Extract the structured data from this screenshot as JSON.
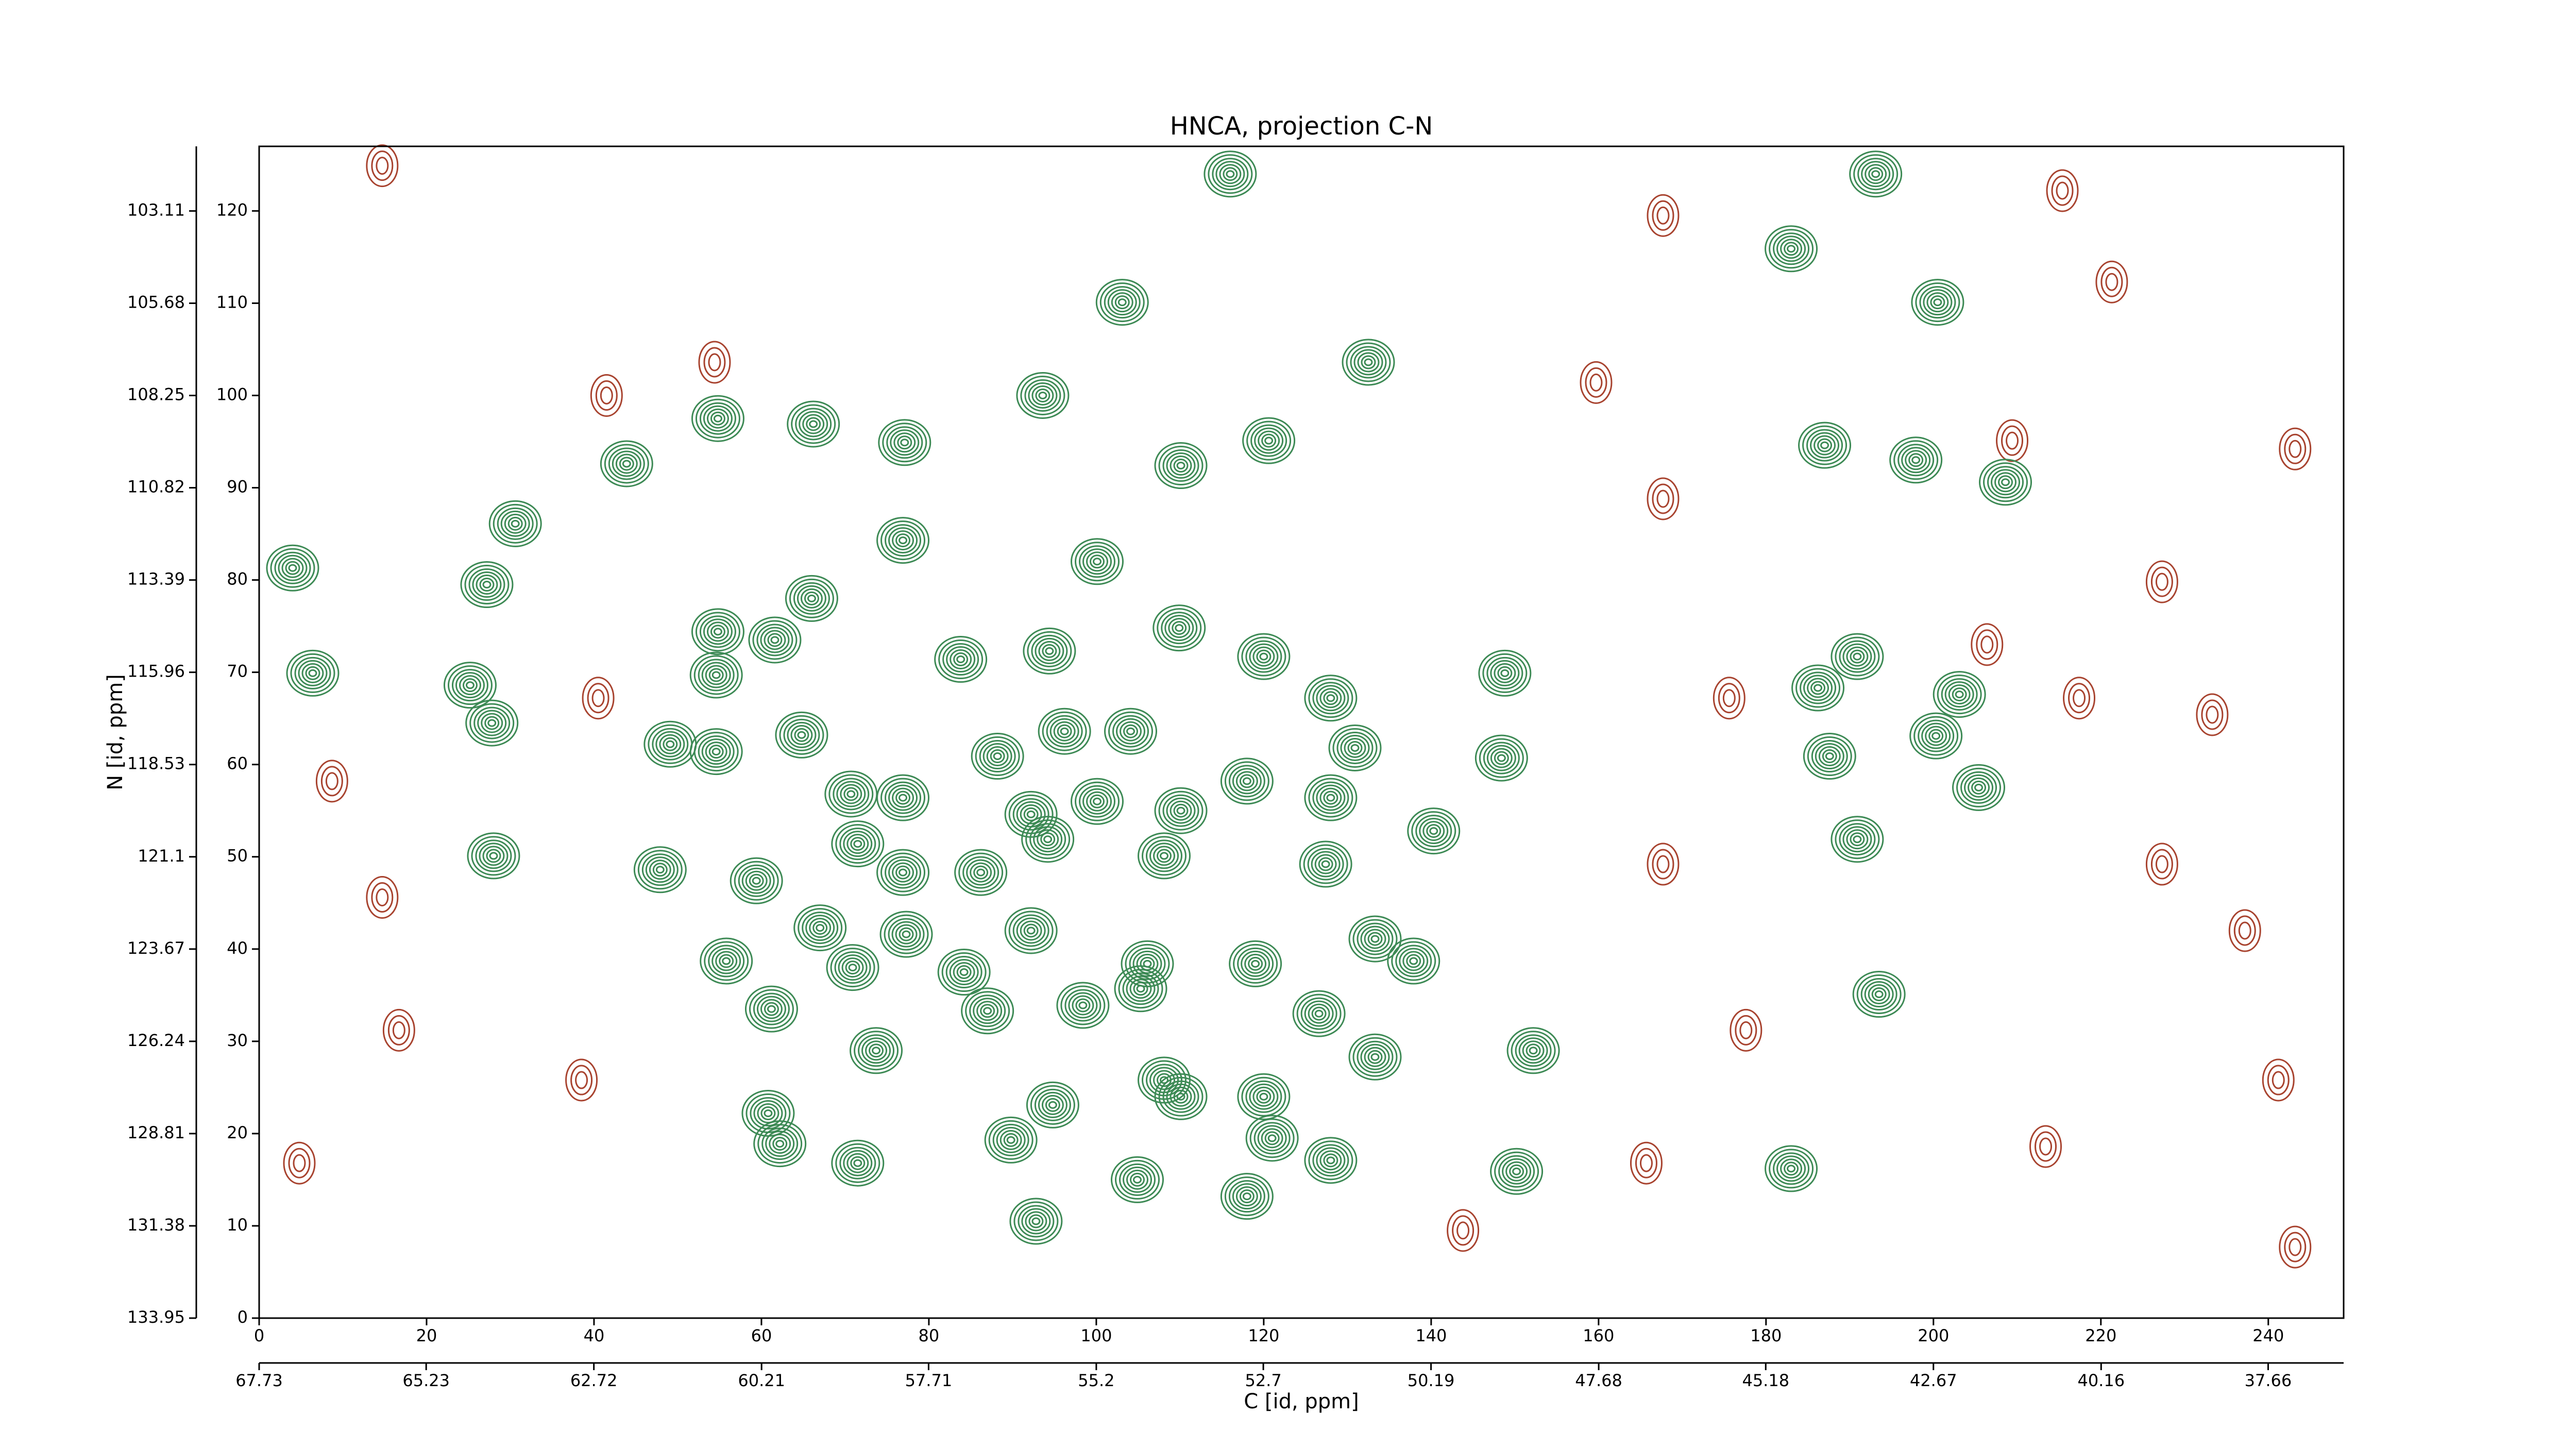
{
  "chart_data": {
    "type": "contour",
    "title": "HNCA, projection C-N",
    "x_label": "C [id, ppm]",
    "y_label": "N [id, ppm]",
    "xlim": [
      0,
      249
    ],
    "xticks": [
      0,
      20,
      40,
      60,
      80,
      100,
      120,
      140,
      160,
      180,
      200,
      220,
      240
    ],
    "ylim": [
      0,
      127
    ],
    "yticks": [
      0,
      10,
      20,
      30,
      40,
      50,
      60,
      70,
      80,
      90,
      100,
      110,
      120
    ],
    "x2lim": [
      67.73,
      36.53
    ],
    "x2ticks": [
      67.73,
      65.23,
      62.72,
      60.21,
      57.71,
      55.2,
      52.7,
      50.19,
      47.68,
      45.18,
      42.67,
      40.16,
      37.66
    ],
    "y2lim": [
      133.95,
      101.31
    ],
    "y2ticks": [
      133.95,
      131.38,
      128.81,
      126.24,
      123.67,
      121.1,
      118.53,
      115.96,
      113.39,
      110.82,
      108.25,
      105.68,
      103.11
    ],
    "positive_peaks": {
      "color": "#3d8a55",
      "x": [
        116.0,
        103.1,
        193.1,
        200.5,
        183.0,
        132.5,
        93.6,
        54.8,
        66.2,
        77.1,
        110.1,
        120.6,
        187.0,
        197.9,
        208.6,
        43.9,
        30.6,
        76.9,
        100.1,
        27.2,
        4.0,
        66.0,
        54.8,
        61.6,
        94.4,
        83.8,
        54.6,
        109.9,
        25.2,
        27.8,
        6.4,
        49.1,
        54.6,
        64.8,
        88.2,
        96.2,
        104.1,
        120.0,
        128.0,
        130.9,
        148.8,
        148.4,
        186.2,
        190.9,
        203.1,
        200.3,
        187.6,
        205.4,
        70.7,
        76.9,
        71.5,
        76.9,
        92.2,
        100.1,
        110.1,
        118.0,
        128.0,
        140.3,
        28.0,
        47.9,
        59.4,
        86.2,
        94.2,
        108.1,
        127.4,
        190.9,
        67.0,
        77.3,
        55.8,
        70.9,
        84.2,
        92.2,
        106.1,
        119.0,
        133.3,
        137.9,
        61.2,
        73.7,
        87.0,
        98.4,
        105.3,
        126.6,
        193.5,
        152.2,
        60.8,
        62.2,
        94.8,
        89.8,
        110.1,
        120.0,
        121.0,
        128.0,
        71.5,
        104.9,
        150.2,
        183.0,
        92.8,
        118.0,
        133.3,
        108.1
      ],
      "y": [
        124.0,
        110.1,
        124.0,
        110.1,
        115.9,
        103.6,
        100.0,
        97.5,
        96.9,
        94.9,
        92.4,
        95.1,
        94.6,
        93.0,
        90.6,
        92.6,
        86.1,
        84.3,
        82.0,
        79.5,
        81.3,
        78.0,
        74.4,
        73.5,
        72.3,
        71.4,
        69.7,
        74.8,
        68.6,
        64.5,
        69.9,
        62.2,
        61.4,
        63.2,
        60.9,
        63.6,
        63.6,
        71.7,
        67.2,
        61.8,
        69.9,
        60.7,
        68.3,
        71.7,
        67.6,
        63.1,
        60.9,
        57.5,
        56.8,
        56.4,
        51.4,
        48.3,
        54.6,
        56.0,
        55.0,
        58.2,
        56.4,
        52.8,
        50.1,
        48.6,
        47.4,
        48.3,
        51.9,
        50.1,
        49.2,
        51.9,
        42.3,
        41.6,
        38.7,
        38.0,
        37.5,
        42.0,
        38.4,
        38.4,
        41.1,
        38.7,
        33.5,
        29.0,
        33.3,
        33.9,
        35.7,
        33.0,
        35.1,
        29.0,
        22.2,
        18.9,
        23.1,
        19.3,
        24.0,
        24.0,
        19.5,
        17.1,
        16.8,
        15.0,
        15.9,
        16.2,
        10.5,
        13.2,
        28.3,
        25.8
      ]
    },
    "negative_peaks": {
      "color": "#a8432f",
      "x": [
        54.4,
        41.5,
        14.7,
        215.4,
        221.3,
        167.7,
        209.4,
        243.2,
        206.4,
        233.3,
        217.4,
        167.7,
        159.7,
        8.7,
        14.7,
        227.3,
        237.2,
        177.6,
        165.7,
        213.4,
        241.2,
        4.8,
        227.3,
        38.5,
        16.7,
        167.7,
        243.2,
        143.8,
        40.5,
        175.6
      ],
      "y": [
        103.6,
        100.0,
        124.9,
        122.2,
        112.3,
        119.5,
        95.1,
        94.2,
        73.0,
        65.4,
        67.2,
        88.8,
        101.4,
        58.2,
        45.6,
        49.2,
        42.0,
        31.2,
        16.8,
        18.6,
        25.8,
        16.8,
        79.8,
        25.8,
        31.2,
        49.2,
        7.7,
        9.5,
        67.2,
        67.2
      ]
    }
  }
}
